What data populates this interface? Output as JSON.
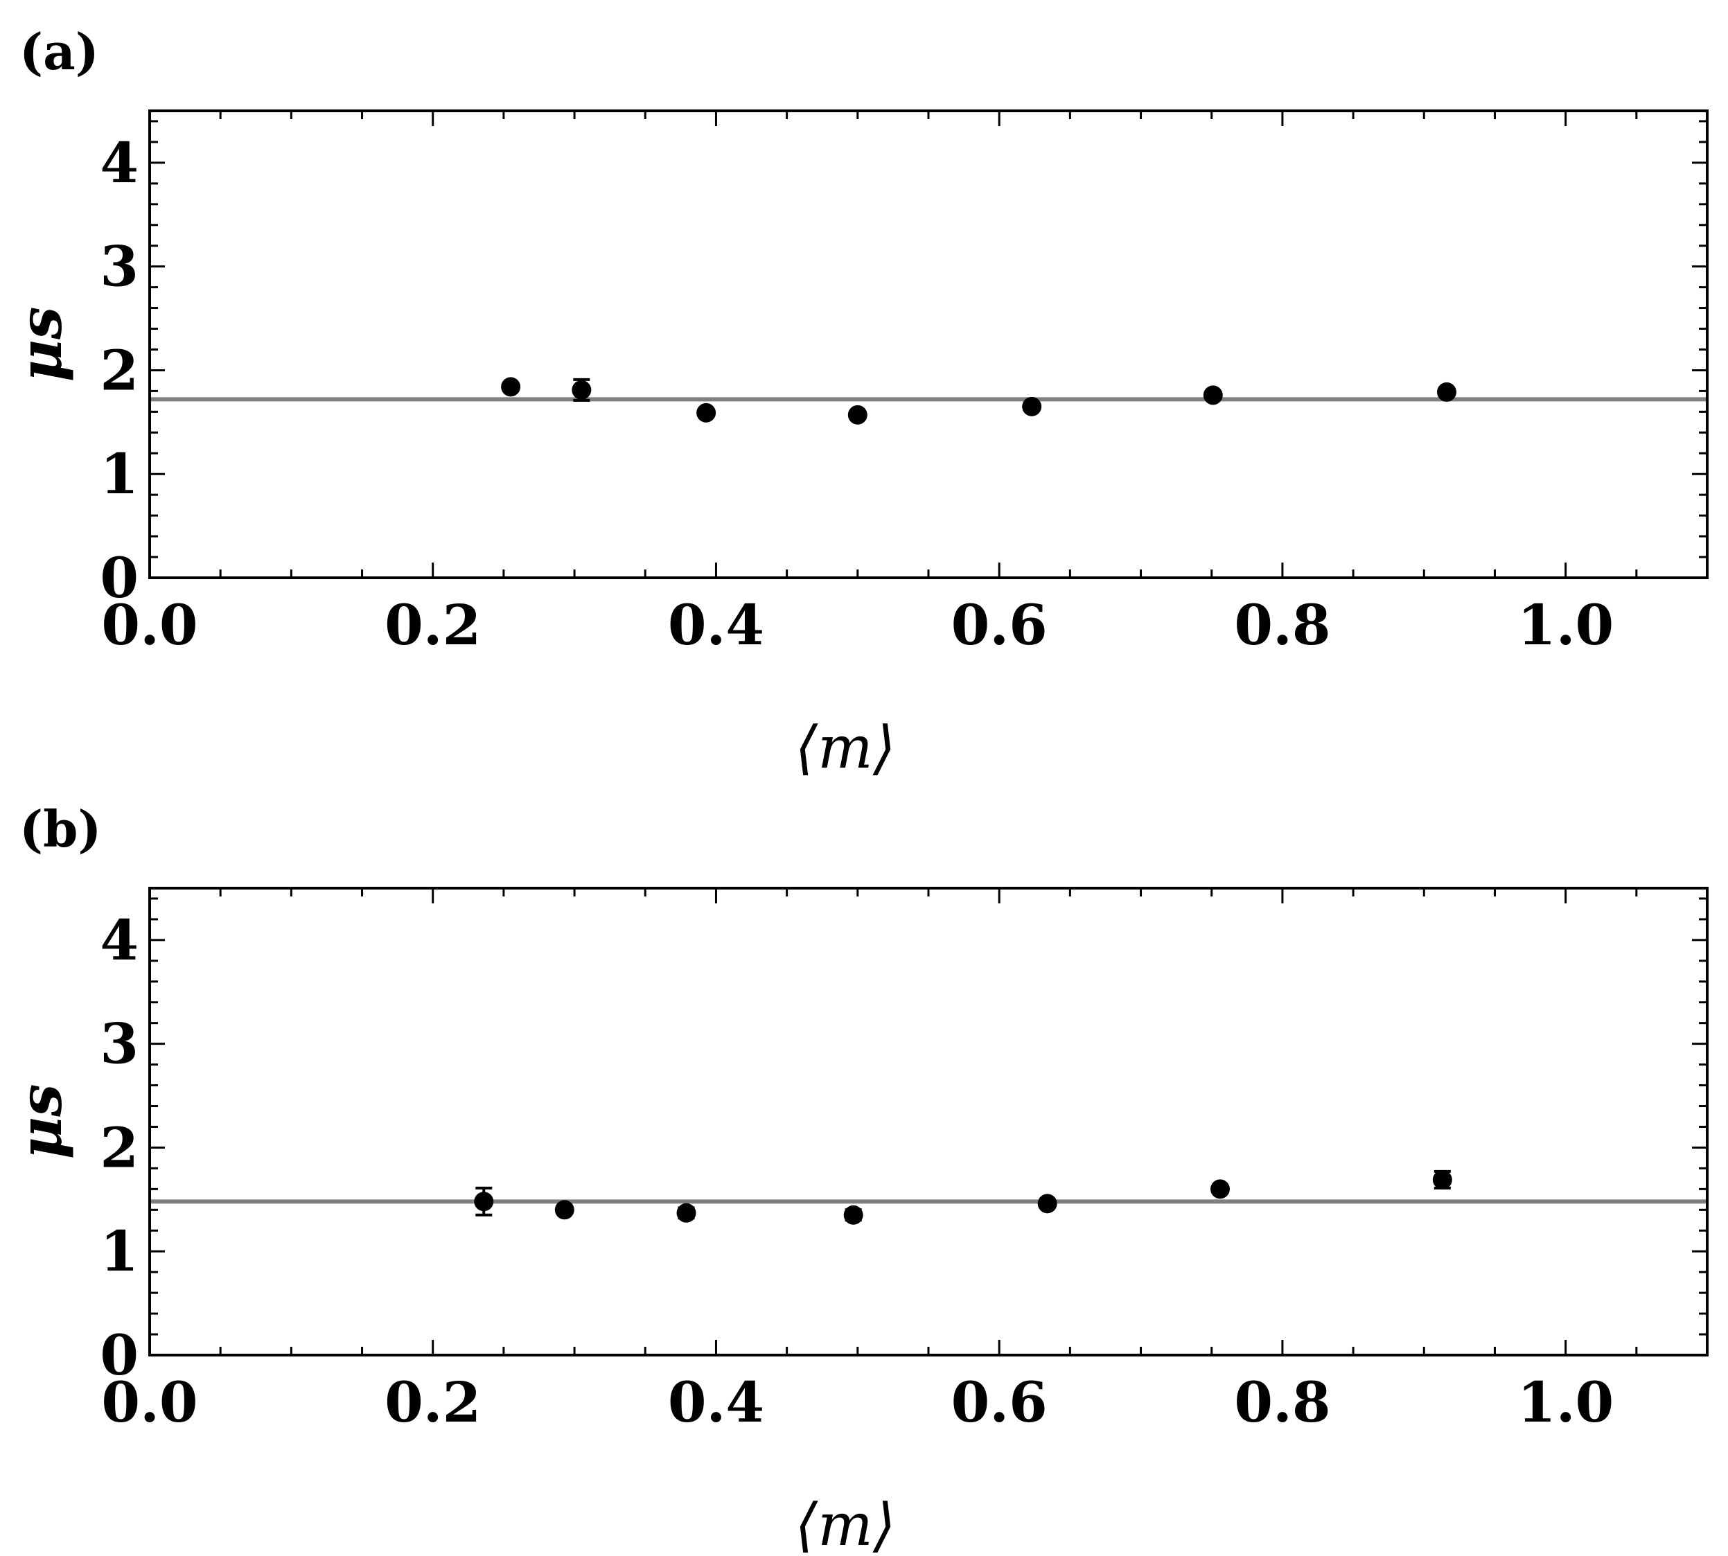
{
  "chart_data": [
    {
      "type": "scatter",
      "panel_label": "(a)",
      "xlabel": "⟨m⟩",
      "ylabel": "μs",
      "xlim": [
        0.0,
        1.1
      ],
      "ylim": [
        0,
        4.5
      ],
      "x_ticks": [
        "0.0",
        "0.2",
        "0.4",
        "0.6",
        "0.8",
        "1.0"
      ],
      "x_tick_values": [
        0.0,
        0.2,
        0.4,
        0.6,
        0.8,
        1.0
      ],
      "y_ticks": [
        "0",
        "1",
        "2",
        "3",
        "4"
      ],
      "y_tick_values": [
        0,
        1,
        2,
        3,
        4
      ],
      "reference_line": 1.72,
      "points": [
        {
          "x": 0.255,
          "y": 1.84,
          "err": 0.0
        },
        {
          "x": 0.305,
          "y": 1.81,
          "err": 0.1
        },
        {
          "x": 0.393,
          "y": 1.59,
          "err": 0.0
        },
        {
          "x": 0.5,
          "y": 1.57,
          "err": 0.0
        },
        {
          "x": 0.623,
          "y": 1.65,
          "err": 0.0
        },
        {
          "x": 0.751,
          "y": 1.76,
          "err": 0.0
        },
        {
          "x": 0.916,
          "y": 1.79,
          "err": 0.0
        }
      ],
      "colors": {
        "points": "#000000",
        "reference_line": "#7f7f7f"
      }
    },
    {
      "type": "scatter",
      "panel_label": "(b)",
      "xlabel": "⟨m⟩",
      "ylabel": "μs",
      "xlim": [
        0.0,
        1.1
      ],
      "ylim": [
        0,
        4.5
      ],
      "x_ticks": [
        "0.0",
        "0.2",
        "0.4",
        "0.6",
        "0.8",
        "1.0"
      ],
      "x_tick_values": [
        0.0,
        0.2,
        0.4,
        0.6,
        0.8,
        1.0
      ],
      "y_ticks": [
        "0",
        "1",
        "2",
        "3",
        "4"
      ],
      "y_tick_values": [
        0,
        1,
        2,
        3,
        4
      ],
      "reference_line": 1.48,
      "points": [
        {
          "x": 0.236,
          "y": 1.48,
          "err": 0.13
        },
        {
          "x": 0.293,
          "y": 1.4,
          "err": 0.0
        },
        {
          "x": 0.379,
          "y": 1.37,
          "err": 0.05
        },
        {
          "x": 0.497,
          "y": 1.35,
          "err": 0.05
        },
        {
          "x": 0.634,
          "y": 1.46,
          "err": 0.0
        },
        {
          "x": 0.756,
          "y": 1.6,
          "err": 0.0
        },
        {
          "x": 0.913,
          "y": 1.69,
          "err": 0.08
        }
      ],
      "colors": {
        "points": "#000000",
        "reference_line": "#7f7f7f"
      }
    }
  ]
}
